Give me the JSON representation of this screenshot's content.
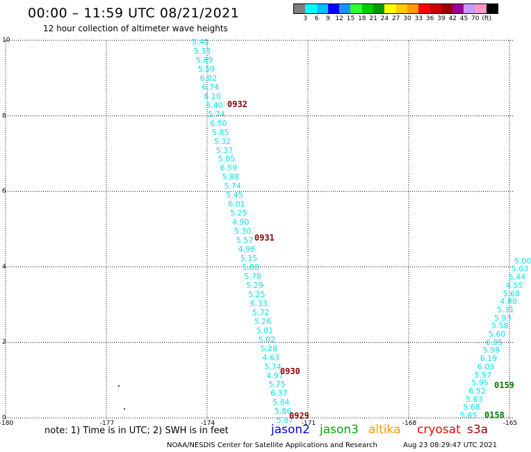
{
  "header": {
    "title": "00:00 – 11:59 UTC 08/21/2021",
    "subtitle": "12 hour collection of altimeter wave heights"
  },
  "legend": {
    "colors": [
      "#808080",
      "#00ffff",
      "#00bfff",
      "#0000ff",
      "#1e90ff",
      "#33ff33",
      "#00cc00",
      "#009900",
      "#ffff00",
      "#ffcc00",
      "#ff9900",
      "#ff0000",
      "#cc0000",
      "#990000",
      "#990099",
      "#cc99ff",
      "#ff99cc",
      "#000000"
    ],
    "labels": [
      "3",
      "6",
      "9",
      "12",
      "15",
      "18",
      "21",
      "24",
      "27",
      "30",
      "33",
      "36",
      "39",
      "42",
      "45",
      "70",
      "(ft)"
    ]
  },
  "axes": {
    "y_ticks": [
      "10",
      "8",
      "6",
      "4",
      "2",
      "0"
    ],
    "x_ticks": [
      "-180",
      "-177",
      "-174",
      "-171",
      "-168",
      "-165"
    ]
  },
  "track_a": {
    "values": [
      "5.40",
      "5.33",
      "5.89",
      "5.59",
      "6.02",
      "6.74",
      "6.10",
      "5.40",
      "5.74",
      "6.50",
      "5.85",
      "5.32",
      "5.37",
      "5.05",
      "6.59",
      "5.88",
      "5.74",
      "5.45",
      "6.01",
      "5.25",
      "4.90",
      "5.30",
      "5.57",
      "4.96",
      "5.15",
      "5.88",
      "5.78",
      "5.29",
      "5.25",
      "6.33",
      "5.72",
      "5.26",
      "5.01",
      "5.02",
      "5.28",
      "4.63",
      "5.74",
      "4.97",
      "5.75",
      "6.37",
      "5.84",
      "5.86",
      "5.87"
    ],
    "times": [
      "0932",
      "0931",
      "0930",
      "0929"
    ],
    "time_color": "#8b0000",
    "value_color": "#00e5ee"
  },
  "track_b": {
    "values": [
      "5.65",
      "5.68",
      "5.63",
      "6.52",
      "5.95",
      "5.57",
      "6.03",
      "6.19",
      "5.98",
      "6.05",
      "5.60",
      "5.58",
      "5.93",
      "5.31",
      "4.80",
      "5.68",
      "4.55",
      "5.44",
      "5.03",
      "5.00"
    ],
    "times": [
      "0158",
      "0159"
    ],
    "time_color": "#007700"
  },
  "satellites": [
    {
      "name": "jason2",
      "color": "#0000ff"
    },
    {
      "name": "jason3",
      "color": "#00aa00"
    },
    {
      "name": "altika",
      "color": "#ff9900"
    },
    {
      "name": "cryosat",
      "color": "#ff0000"
    },
    {
      "name": "s3a",
      "color": "#990000"
    }
  ],
  "footer": {
    "note": "note: 1) Time is in UTC; 2) SWH is in feet",
    "credit": "NOAA/NESDIS Center for Satellite Applications and Research",
    "timestamp": "Aug 23 08:29:47 UTC 2021"
  }
}
